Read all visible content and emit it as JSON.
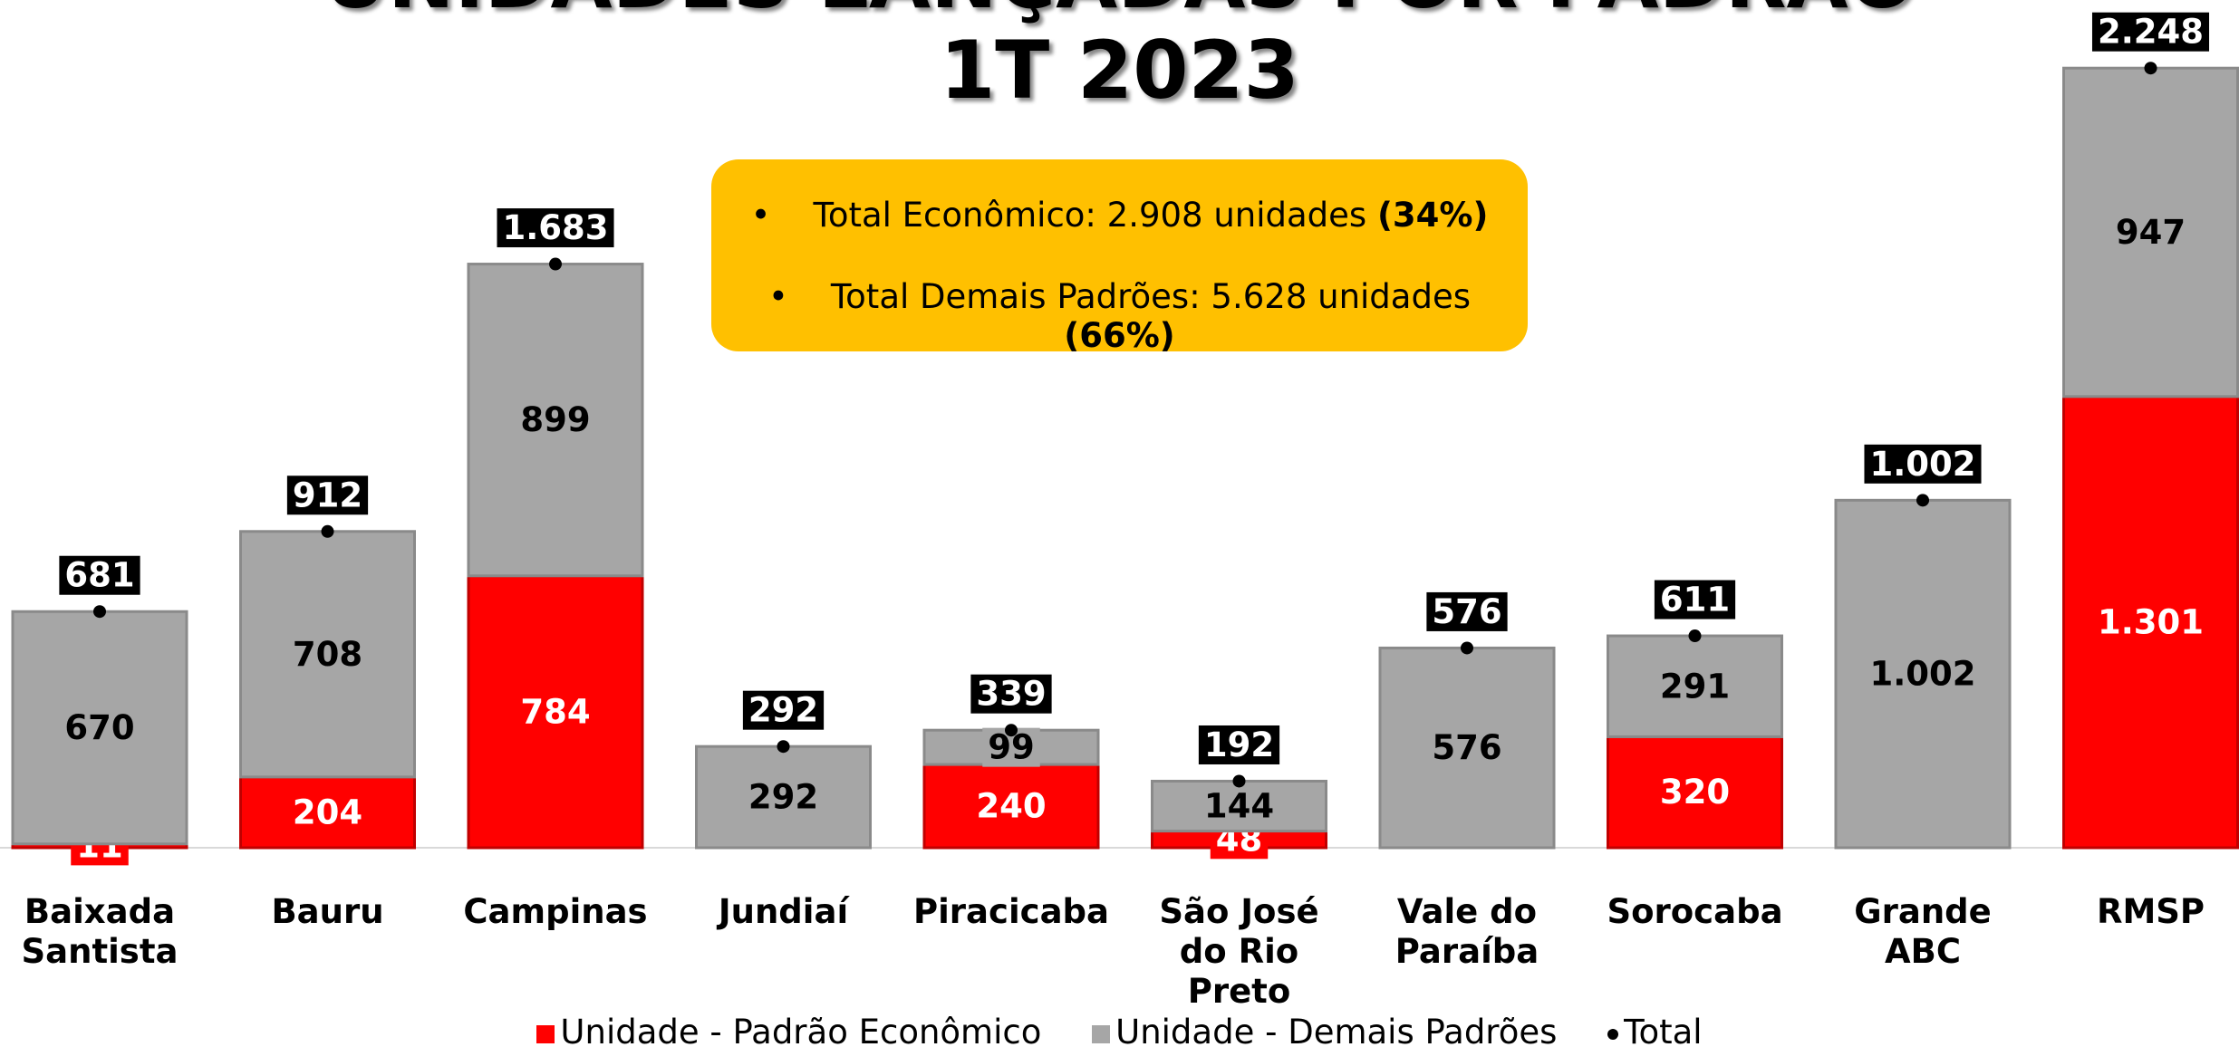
{
  "chart_data": {
    "type": "stacked_bar",
    "title": "UNIDADES LANÇADAS POR PADRÃO",
    "subtitle": "1T 2023",
    "categories": [
      "Baixada Santista",
      "Bauru",
      "Campinas",
      "Jundiaí",
      "Piracicaba",
      "São José do Rio Preto",
      "Vale do Paraíba",
      "Sorocaba",
      "Grande ABC",
      "RMSP"
    ],
    "series": [
      {
        "name": "Unidade - Padrão Econômico",
        "color": "#ff0000",
        "values": [
          11,
          204,
          784,
          null,
          240,
          48,
          null,
          320,
          null,
          1301
        ],
        "value_labels": [
          "11",
          "204",
          "784",
          null,
          "240",
          "48",
          null,
          "320",
          null,
          "1.301"
        ]
      },
      {
        "name": "Unidade - Demais Padrões",
        "color": "#a6a6a6",
        "values": [
          670,
          708,
          899,
          292,
          99,
          144,
          576,
          291,
          1002,
          947
        ],
        "value_labels": [
          "670",
          "708",
          "899",
          "292",
          "99",
          "144",
          "576",
          "291",
          "1.002",
          "947"
        ]
      }
    ],
    "totals": {
      "name": "Total",
      "color": "#000000",
      "values": [
        681,
        912,
        1683,
        292,
        339,
        192,
        576,
        611,
        1002,
        2248
      ],
      "value_labels": [
        "681",
        "912",
        "1.683",
        "292",
        "339",
        "192",
        "576",
        "611",
        "1.002",
        "2.248"
      ]
    },
    "ylim": [
      0,
      2400
    ],
    "annotations": [
      {
        "text": "Total Econômico: 2.908 unidades",
        "bold": "(34%)"
      },
      {
        "text": "Total Demais Padrões: 5.628 unidades",
        "bold": "(66%)"
      }
    ]
  }
}
